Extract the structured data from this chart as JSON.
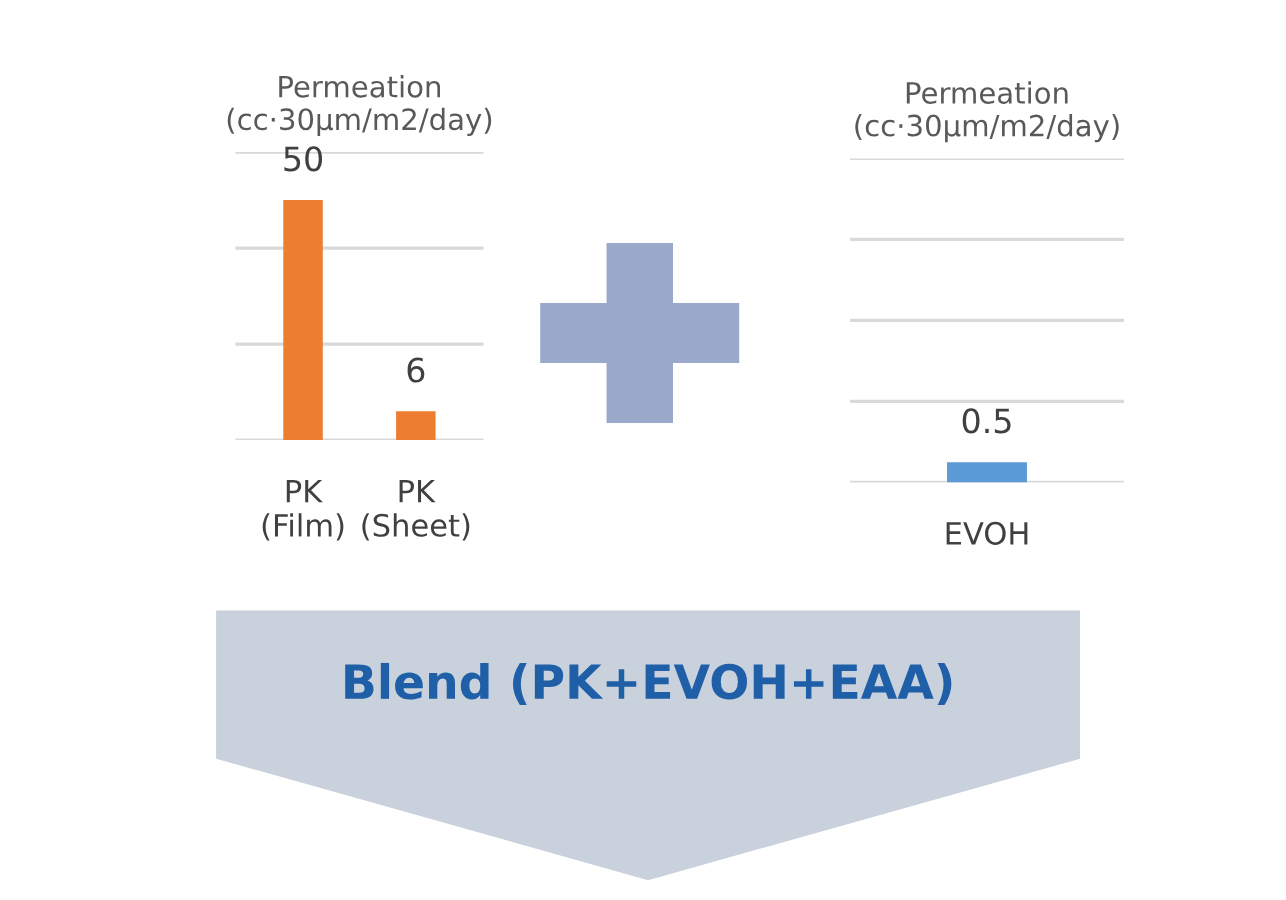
{
  "chart_data": [
    {
      "type": "bar",
      "title": "Permeation\n(cc·30μm/m2/day)",
      "categories": [
        "PK\n(Film)",
        "PK\n(Sheet)"
      ],
      "values": [
        50,
        6
      ],
      "color": "#ed7d31",
      "ylim": [
        0,
        60
      ],
      "yticks": [
        {
          "value": 0,
          "label": null
        },
        {
          "value": 20,
          "label": null
        },
        {
          "value": 40,
          "label": null
        },
        {
          "value": 60,
          "label": null
        }
      ],
      "grid": "y",
      "tick_labels": "x",
      "data_labels": true
    },
    {
      "type": "bar",
      "title": "Permeation\n(cc·30μm/m2/day)",
      "categories": [
        "EVOH"
      ],
      "values": [
        0.5
      ],
      "color": "#5b9bd5",
      "ylim": [
        0,
        8
      ],
      "yticks": [
        {
          "value": 0,
          "label": null
        },
        {
          "value": 2,
          "label": null
        },
        {
          "value": 4,
          "label": null
        },
        {
          "value": 6,
          "label": null
        },
        {
          "value": 8,
          "label": null
        }
      ],
      "grid": "y",
      "tick_labels": "x",
      "data_labels": true
    },
    {
      "type": "other",
      "title": "Blend (PK+EVOH+EAA)"
    }
  ]
}
